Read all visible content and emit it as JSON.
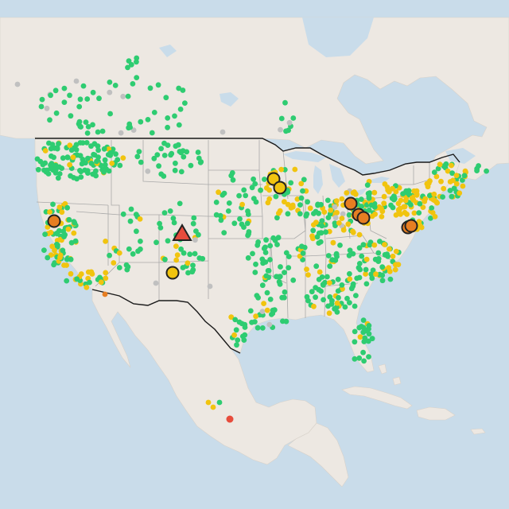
{
  "map": {
    "colors": {
      "water": "#c9dcea",
      "land": "#ede8e2",
      "land_alt": "#e8e3dc",
      "state_border": "#a9a9a9",
      "national_border": "#1a1a1a",
      "marker_outline": "#222222",
      "border_white": "#ffffff"
    },
    "legend_colors": {
      "good": "#2ecc71",
      "moderate": "#f1c40f",
      "unhealthy_sensitive": "#e67e22",
      "unhealthy": "#e74c3c",
      "no_data": "#c0c0c0"
    },
    "highlighted_markers": [
      {
        "shape": "circle",
        "level": "unhealthy_sensitive",
        "region": "northern-california"
      },
      {
        "shape": "triangle",
        "level": "unhealthy",
        "region": "colorado"
      },
      {
        "shape": "circle",
        "level": "moderate",
        "region": "new-mexico"
      },
      {
        "shape": "circle",
        "level": "moderate",
        "region": "minnesota"
      },
      {
        "shape": "circle",
        "level": "moderate",
        "region": "minnesota"
      },
      {
        "shape": "circle",
        "level": "unhealthy_sensitive",
        "region": "ohio"
      },
      {
        "shape": "circle",
        "level": "unhealthy_sensitive",
        "region": "ohio"
      },
      {
        "shape": "circle",
        "level": "unhealthy_sensitive",
        "region": "ohio"
      },
      {
        "shape": "circle",
        "level": "unhealthy_sensitive",
        "region": "mid-atlantic"
      },
      {
        "shape": "circle",
        "level": "unhealthy_sensitive",
        "region": "mid-atlantic"
      }
    ]
  }
}
